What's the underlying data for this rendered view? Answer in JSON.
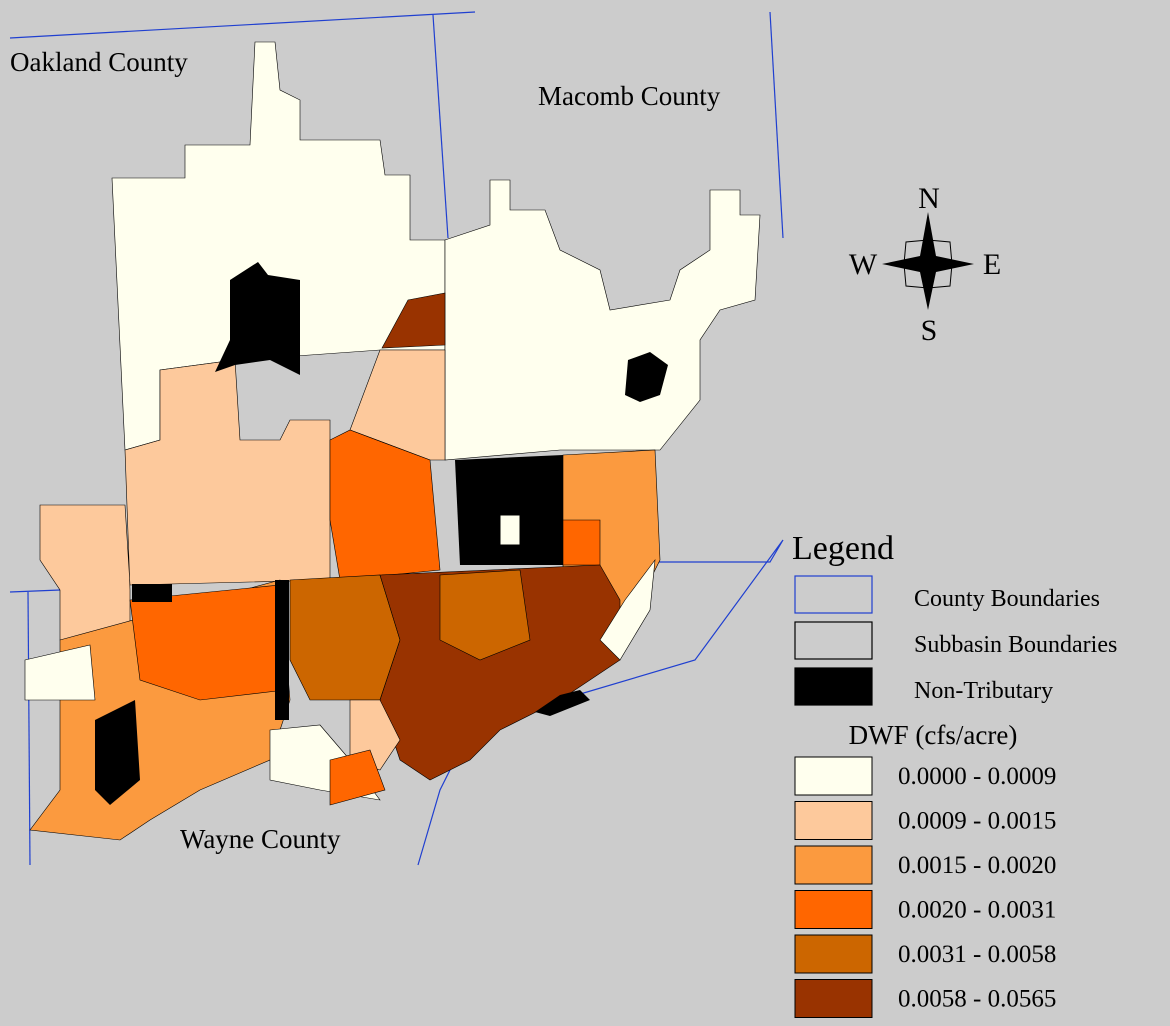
{
  "labels": {
    "oakland": "Oakland County",
    "macomb": "Macomb County",
    "wayne": "Wayne County"
  },
  "compass": {
    "n": "N",
    "s": "S",
    "e": "E",
    "w": "W"
  },
  "legend": {
    "title": "Legend",
    "items": [
      {
        "label": "County Boundaries",
        "border": "#1f3fd0",
        "fill": "#cccccc"
      },
      {
        "label": "Subbasin Boundaries",
        "border": "#000000",
        "fill": "#cccccc"
      },
      {
        "label": "Non-Tributary",
        "border": "#000000",
        "fill": "#000000"
      }
    ],
    "dwf_title": "DWF (cfs/acre)",
    "classes": [
      {
        "label": "0.0000 - 0.0009",
        "color": "#ffffee"
      },
      {
        "label": "0.0009 - 0.0015",
        "color": "#fdc99c"
      },
      {
        "label": "0.0015 - 0.0020",
        "color": "#fb9a3f"
      },
      {
        "label": "0.0020 - 0.0031",
        "color": "#ff6600"
      },
      {
        "label": "0.0031 - 0.0058",
        "color": "#cc6600"
      },
      {
        "label": "0.0058 - 0.0565",
        "color": "#993300"
      }
    ]
  }
}
